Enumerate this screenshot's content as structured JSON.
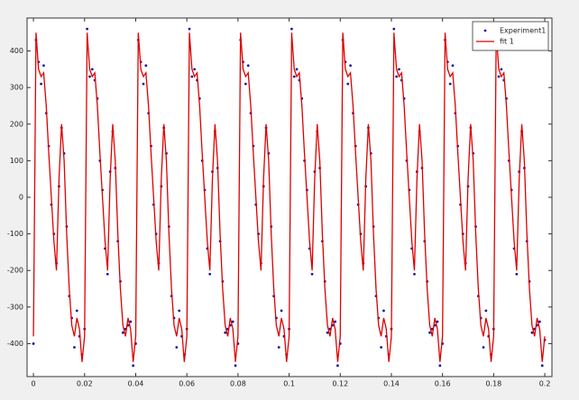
{
  "chart_data": {
    "type": "line",
    "x": [
      0,
      0.001,
      0.002,
      0.003,
      0.004,
      0.005,
      0.006,
      0.007,
      0.008,
      0.009,
      0.01,
      0.011,
      0.012,
      0.013,
      0.014,
      0.015,
      0.016,
      0.017,
      0.018,
      0.019,
      0.02,
      0.021,
      0.022,
      0.023,
      0.024,
      0.025,
      0.026,
      0.027,
      0.028,
      0.029,
      0.03,
      0.031,
      0.032,
      0.033,
      0.034,
      0.035,
      0.036,
      0.037,
      0.038,
      0.039,
      0.04,
      0.041,
      0.042,
      0.043,
      0.044,
      0.045,
      0.046,
      0.047,
      0.048,
      0.049,
      0.05,
      0.051,
      0.052,
      0.053,
      0.054,
      0.055,
      0.056,
      0.057,
      0.058,
      0.059,
      0.06,
      0.061,
      0.062,
      0.063,
      0.064,
      0.065,
      0.066,
      0.067,
      0.068,
      0.069,
      0.07,
      0.071,
      0.072,
      0.073,
      0.074,
      0.075,
      0.076,
      0.077,
      0.078,
      0.079,
      0.08,
      0.081,
      0.082,
      0.083,
      0.084,
      0.085,
      0.086,
      0.087,
      0.088,
      0.089,
      0.09,
      0.091,
      0.092,
      0.093,
      0.094,
      0.095,
      0.096,
      0.097,
      0.098,
      0.099,
      0.1,
      0.101,
      0.102,
      0.103,
      0.104,
      0.105,
      0.106,
      0.107,
      0.108,
      0.109,
      0.11,
      0.111,
      0.112,
      0.113,
      0.114,
      0.115,
      0.116,
      0.117,
      0.118,
      0.119,
      0.12,
      0.121,
      0.122,
      0.123,
      0.124,
      0.125,
      0.126,
      0.127,
      0.128,
      0.129,
      0.13,
      0.131,
      0.132,
      0.133,
      0.134,
      0.135,
      0.136,
      0.137,
      0.138,
      0.139,
      0.14,
      0.141,
      0.142,
      0.143,
      0.144,
      0.145,
      0.146,
      0.147,
      0.148,
      0.149,
      0.15,
      0.151,
      0.152,
      0.153,
      0.154,
      0.155,
      0.156,
      0.157,
      0.158,
      0.159,
      0.16,
      0.161,
      0.162,
      0.163,
      0.164,
      0.165,
      0.166,
      0.167,
      0.168,
      0.169,
      0.17,
      0.171,
      0.172,
      0.173,
      0.174,
      0.175,
      0.176,
      0.177,
      0.178,
      0.179,
      0.18,
      0.181,
      0.182,
      0.183,
      0.184,
      0.185,
      0.186,
      0.187,
      0.188,
      0.189,
      0.19,
      0.191,
      0.192,
      0.193,
      0.194,
      0.195,
      0.196,
      0.197,
      0.198,
      0.199,
      0.2
    ],
    "series": [
      {
        "name": "Experiment1",
        "color": "#1a1aa0",
        "style": "markers",
        "values": [
          -400,
          430,
          370,
          310,
          360,
          230,
          140,
          -20,
          -100,
          -180,
          30,
          190,
          120,
          -80,
          -270,
          -330,
          -410,
          -310,
          -380,
          -430,
          -360,
          460,
          330,
          350,
          320,
          270,
          100,
          20,
          -140,
          -210,
          70,
          180,
          80,
          -120,
          -230,
          -370,
          -360,
          -350,
          -340,
          -460,
          -400,
          430,
          370,
          310,
          360,
          230,
          140,
          -20,
          -100,
          -180,
          30,
          190,
          120,
          -80,
          -270,
          -330,
          -410,
          -310,
          -380,
          -430,
          -360,
          460,
          330,
          350,
          320,
          270,
          100,
          20,
          -140,
          -210,
          70,
          180,
          80,
          -120,
          -230,
          -370,
          -360,
          -350,
          -340,
          -460,
          -400,
          430,
          370,
          310,
          360,
          230,
          140,
          -20,
          -100,
          -180,
          30,
          190,
          120,
          -80,
          -270,
          -330,
          -410,
          -310,
          -380,
          -430,
          -360,
          460,
          330,
          350,
          320,
          270,
          100,
          20,
          -140,
          -210,
          70,
          180,
          80,
          -120,
          -230,
          -370,
          -360,
          -350,
          -340,
          -460,
          -400,
          430,
          370,
          310,
          360,
          230,
          140,
          -20,
          -100,
          -180,
          30,
          190,
          120,
          -80,
          -270,
          -330,
          -410,
          -310,
          -380,
          -430,
          -360,
          460,
          330,
          350,
          320,
          270,
          100,
          20,
          -140,
          -210,
          70,
          180,
          80,
          -120,
          -230,
          -370,
          -360,
          -350,
          -340,
          -460,
          -400,
          430,
          370,
          310,
          360,
          230,
          140,
          -20,
          -100,
          -180,
          30,
          190,
          120,
          -80,
          -270,
          -330,
          -410,
          -310,
          -380,
          -430,
          -360,
          460,
          330,
          350,
          320,
          270,
          100,
          20,
          -140,
          -210,
          70,
          180,
          80,
          -120,
          -230,
          -370,
          -360,
          -350,
          -340,
          -460,
          -390
        ]
      },
      {
        "name": "fit 1",
        "color": "#dd0000",
        "style": "line",
        "values": [
          -380,
          450,
          350,
          330,
          340,
          250,
          120,
          0,
          -120,
          -200,
          50,
          200,
          100,
          -100,
          -250,
          -350,
          -380,
          -330,
          -360,
          -450,
          -380,
          450,
          350,
          330,
          340,
          250,
          120,
          0,
          -120,
          -200,
          50,
          200,
          100,
          -100,
          -250,
          -350,
          -380,
          -330,
          -360,
          -450,
          -380,
          450,
          350,
          330,
          340,
          250,
          120,
          0,
          -120,
          -200,
          50,
          200,
          100,
          -100,
          -250,
          -350,
          -380,
          -330,
          -360,
          -450,
          -380,
          450,
          350,
          330,
          340,
          250,
          120,
          0,
          -120,
          -200,
          50,
          200,
          100,
          -100,
          -250,
          -350,
          -380,
          -330,
          -360,
          -450,
          -380,
          450,
          350,
          330,
          340,
          250,
          120,
          0,
          -120,
          -200,
          50,
          200,
          100,
          -100,
          -250,
          -350,
          -380,
          -330,
          -360,
          -450,
          -380,
          450,
          350,
          330,
          340,
          250,
          120,
          0,
          -120,
          -200,
          50,
          200,
          100,
          -100,
          -250,
          -350,
          -380,
          -330,
          -360,
          -450,
          -380,
          450,
          350,
          330,
          340,
          250,
          120,
          0,
          -120,
          -200,
          50,
          200,
          100,
          -100,
          -250,
          -350,
          -380,
          -330,
          -360,
          -450,
          -380,
          450,
          350,
          330,
          340,
          250,
          120,
          0,
          -120,
          -200,
          50,
          200,
          100,
          -100,
          -250,
          -350,
          -380,
          -330,
          -360,
          -450,
          -380,
          450,
          350,
          330,
          340,
          250,
          120,
          0,
          -120,
          -200,
          50,
          200,
          100,
          -100,
          -250,
          -350,
          -380,
          -330,
          -360,
          -450,
          -380,
          450,
          350,
          330,
          340,
          250,
          120,
          0,
          -120,
          -200,
          50,
          200,
          100,
          -100,
          -250,
          -350,
          -380,
          -330,
          -360,
          -450,
          -380
        ]
      }
    ],
    "xlim": [
      -0.0025,
      0.2028
    ],
    "xticks": [
      0,
      0.02,
      0.04,
      0.06,
      0.08,
      0.1,
      0.12,
      0.14,
      0.16,
      0.18,
      0.2
    ],
    "ylim": [
      -490,
      490
    ],
    "yticks": [
      -400,
      -300,
      -200,
      -100,
      0,
      100,
      200,
      300,
      400
    ],
    "grid": false,
    "legend": "top-right"
  }
}
